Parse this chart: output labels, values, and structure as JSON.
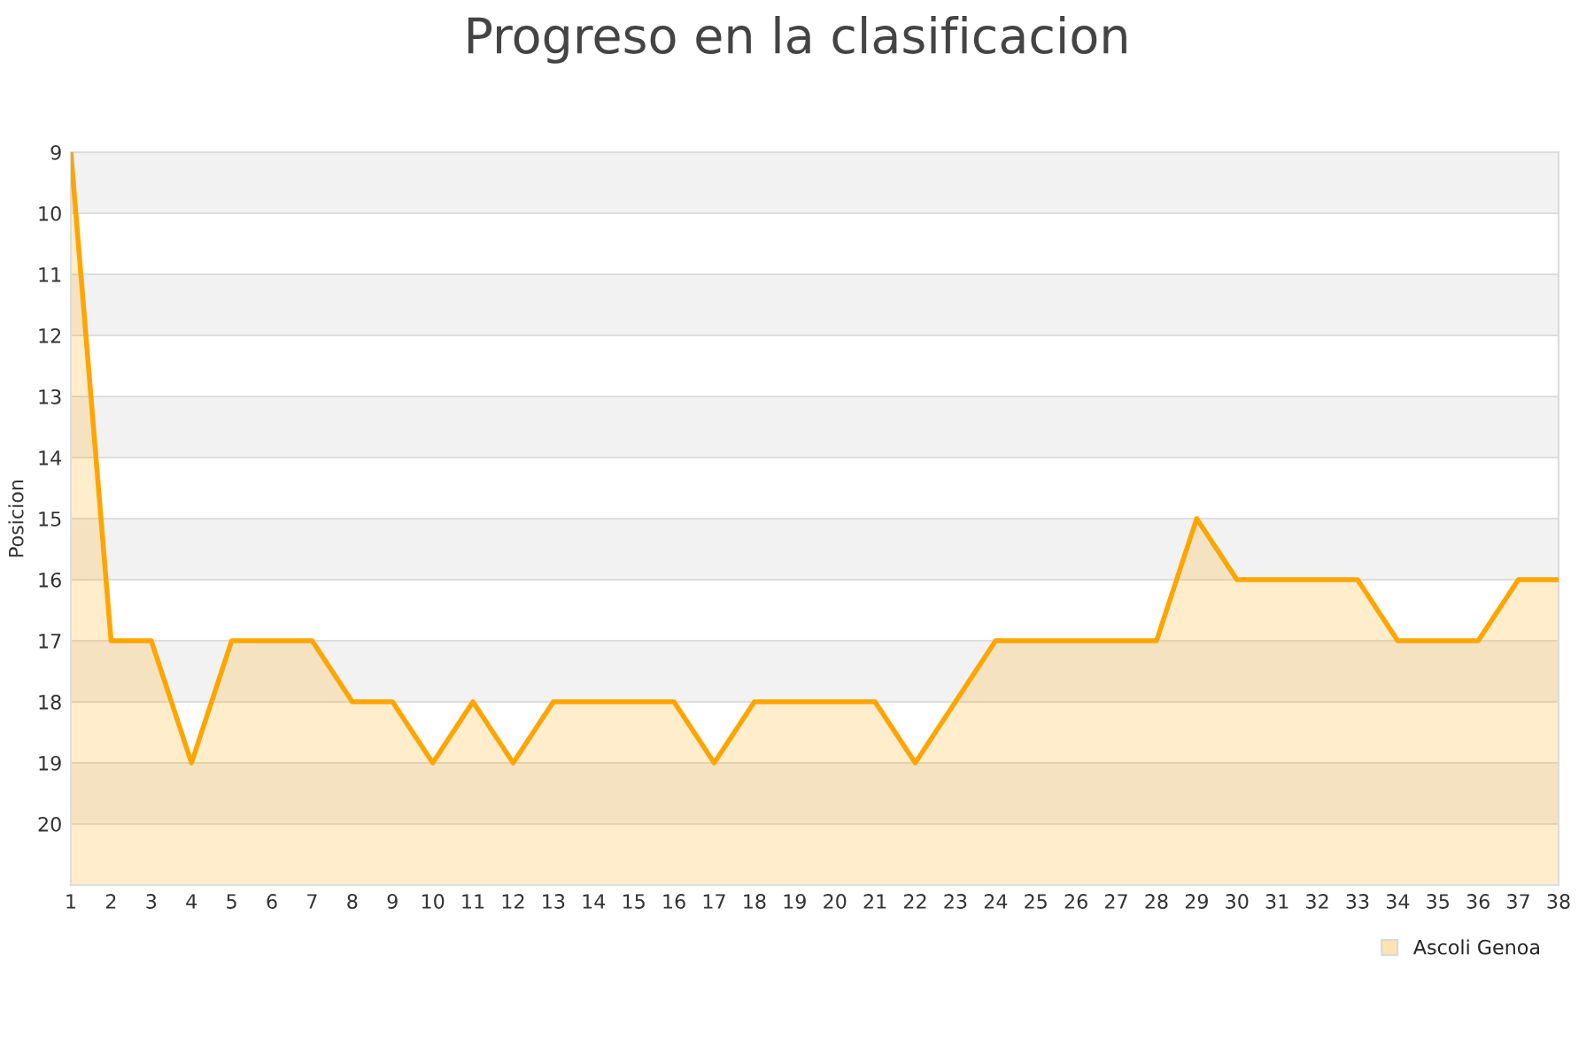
{
  "chart_data": {
    "type": "area",
    "title": "Progreso en la clasificacion",
    "ylabel": "Posicion",
    "x": [
      1,
      2,
      3,
      4,
      5,
      6,
      7,
      8,
      9,
      10,
      11,
      12,
      13,
      14,
      15,
      16,
      17,
      18,
      19,
      20,
      21,
      22,
      23,
      24,
      25,
      26,
      27,
      28,
      29,
      30,
      31,
      32,
      33,
      34,
      35,
      36,
      37,
      38
    ],
    "series": [
      {
        "name": "Ascoli Genoa",
        "color": "#ffa500",
        "values": [
          9,
          17,
          17,
          19,
          17,
          17,
          17,
          18,
          18,
          19,
          18,
          19,
          18,
          18,
          18,
          18,
          19,
          18,
          18,
          18,
          18,
          19,
          18,
          17,
          17,
          17,
          17,
          17,
          15,
          16,
          16,
          16,
          16,
          17,
          17,
          17,
          16,
          16
        ]
      }
    ],
    "xlim": [
      1,
      38
    ],
    "xticks": [
      1,
      2,
      3,
      4,
      5,
      6,
      7,
      8,
      9,
      10,
      11,
      12,
      13,
      14,
      15,
      16,
      17,
      18,
      19,
      20,
      21,
      22,
      23,
      24,
      25,
      26,
      27,
      28,
      29,
      30,
      31,
      32,
      33,
      34,
      35,
      36,
      37,
      38
    ],
    "ylim": [
      21,
      9
    ],
    "yticks": [
      9,
      10,
      11,
      12,
      13,
      14,
      15,
      16,
      17,
      18,
      19,
      20
    ],
    "bands": [
      {
        "axis": "y",
        "from": 9,
        "to": 10,
        "color": "#f2f2f2"
      },
      {
        "axis": "y",
        "from": 11,
        "to": 12,
        "color": "#f2f2f2"
      },
      {
        "axis": "y",
        "from": 13,
        "to": 14,
        "color": "#f2f2f2"
      },
      {
        "axis": "y",
        "from": 15,
        "to": 16,
        "color": "#f2f2f2"
      },
      {
        "axis": "y",
        "from": 17,
        "to": 18,
        "color": "#f2f2f2"
      },
      {
        "axis": "y",
        "from": 19,
        "to": 20,
        "color": "#f2f2f2"
      }
    ],
    "grid": "y",
    "legend": "bottom right",
    "marker": "none",
    "line_style": "solid"
  }
}
